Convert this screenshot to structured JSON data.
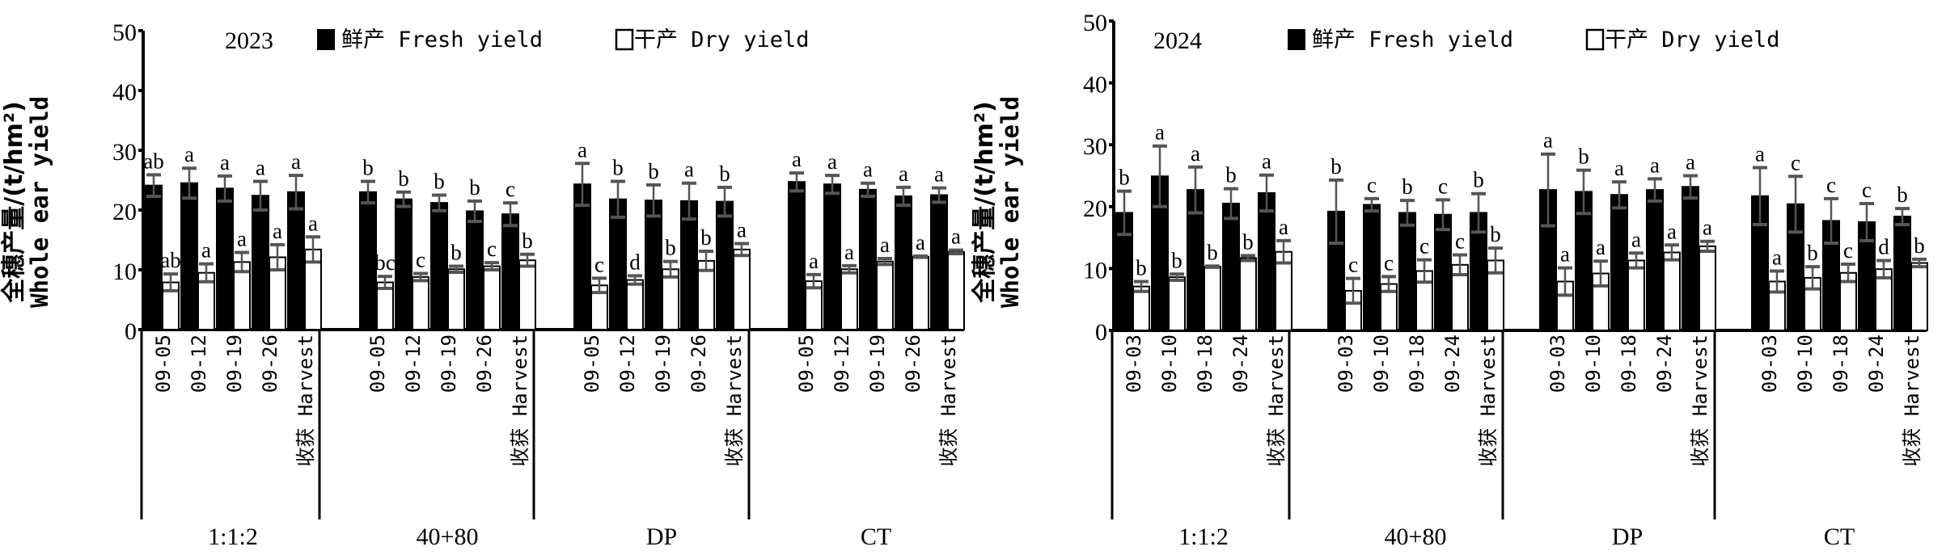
{
  "chart_data": [
    {
      "type": "bar",
      "title": "2023",
      "ylabel_cn": "全穗产量/(t/hm²)",
      "ylabel_en": "Whole ear yield",
      "ylim": [
        0,
        50
      ],
      "yticks": [
        "0",
        "10",
        "20",
        "30",
        "40",
        "50"
      ],
      "legend": {
        "fresh": "鲜产 Fresh yield",
        "dry": "干产 Dry yield",
        "placement": "top"
      },
      "groups": [
        "1:1:2",
        "40+80",
        "DP",
        "CT"
      ],
      "categories": [
        [
          "09-05",
          "09-12",
          "09-19",
          "09-26",
          "收获 Harvest"
        ],
        [
          "09-05",
          "09-12",
          "09-19",
          "09-26",
          "收获 Harvest"
        ],
        [
          "09-05",
          "09-12",
          "09-19",
          "09-26",
          "收获 Harvest"
        ],
        [
          "09-05",
          "09-12",
          "09-19",
          "09-26",
          "收获 Harvest"
        ]
      ],
      "series": [
        {
          "name": "鲜产 Fresh yield",
          "color": "#000000",
          "values": [
            [
              24.1,
              24.5,
              23.6,
              22.4,
              23.0
            ],
            [
              23.0,
              21.8,
              21.2,
              19.8,
              19.3
            ],
            [
              24.3,
              21.8,
              21.6,
              21.5,
              21.4
            ],
            [
              24.7,
              24.3,
              23.4,
              22.3,
              22.5
            ]
          ],
          "errors": [
            [
              1.8,
              2.5,
              2.1,
              2.4,
              2.8
            ],
            [
              1.8,
              1.2,
              1.3,
              1.7,
              1.9
            ],
            [
              3.5,
              3.0,
              2.6,
              3.0,
              2.4
            ],
            [
              1.5,
              1.5,
              1.1,
              1.5,
              1.2
            ]
          ],
          "letters": [
            [
              "ab",
              "a",
              "a",
              "a",
              "a"
            ],
            [
              "b",
              "b",
              "b",
              "b",
              "c"
            ],
            [
              "a",
              "b",
              "b",
              "a",
              "b"
            ],
            [
              "a",
              "a",
              "a",
              "a",
              "a"
            ]
          ]
        },
        {
          "name": "干产 Dry yield",
          "color": "#ffffff",
          "values": [
            [
              7.9,
              9.5,
              11.3,
              12.1,
              13.4
            ],
            [
              7.9,
              8.8,
              10.1,
              10.6,
              11.6
            ],
            [
              7.4,
              8.3,
              10.1,
              11.5,
              13.4
            ],
            [
              8.1,
              10.1,
              11.4,
              12.2,
              13.0
            ]
          ],
          "errors": [
            [
              1.4,
              1.5,
              1.6,
              2.1,
              2.1
            ],
            [
              1.0,
              0.6,
              0.5,
              0.6,
              1.0
            ],
            [
              1.2,
              0.7,
              1.3,
              1.6,
              1.0
            ],
            [
              1.1,
              0.6,
              0.5,
              0.1,
              0.3
            ]
          ],
          "letters": [
            [
              "ab",
              "a",
              "a",
              "a",
              "a"
            ],
            [
              "bc",
              "c",
              "b",
              "c",
              "b"
            ],
            [
              "c",
              "d",
              "b",
              "b",
              "a"
            ],
            [
              "a",
              "a",
              "a",
              "a",
              "a"
            ]
          ]
        }
      ]
    },
    {
      "type": "bar",
      "title": "2024",
      "ylabel_cn": "全穗产量/(t/hm²)",
      "ylabel_en": "Whole ear yield",
      "ylim": [
        0,
        50
      ],
      "yticks": [
        "0",
        "10",
        "20",
        "30",
        "40",
        "50"
      ],
      "legend": {
        "fresh": "鲜产 Fresh yield",
        "dry": "干产 Dry yield",
        "placement": "top"
      },
      "groups": [
        "1:1:2",
        "40+80",
        "DP",
        "CT"
      ],
      "categories": [
        [
          "09-03",
          "09-10",
          "09-18",
          "09-24",
          "收获 Harvest"
        ],
        [
          "09-03",
          "09-10",
          "09-18",
          "09-24",
          "收获 Harvest"
        ],
        [
          "09-03",
          "09-10",
          "09-18",
          "09-24",
          "收获 Harvest"
        ],
        [
          "09-03",
          "09-10",
          "09-18",
          "09-24",
          "收获 Harvest"
        ]
      ],
      "series": [
        {
          "name": "鲜产 Fresh yield",
          "color": "#000000",
          "values": [
            [
              19.0,
              24.9,
              22.7,
              20.5,
              22.2
            ],
            [
              19.2,
              20.3,
              19.0,
              18.7,
              19.0
            ],
            [
              22.7,
              22.4,
              21.9,
              22.7,
              23.2
            ],
            [
              21.7,
              20.4,
              17.7,
              17.5,
              18.4
            ]
          ],
          "errors": [
            [
              3.5,
              4.9,
              3.7,
              2.4,
              2.9
            ],
            [
              5.1,
              1.0,
              2.0,
              2.4,
              3.1
            ],
            [
              5.8,
              3.5,
              2.1,
              1.8,
              1.8
            ],
            [
              4.6,
              4.5,
              3.6,
              3.0,
              1.3
            ]
          ],
          "letters": [
            [
              "b",
              "a",
              "a",
              "b",
              "a"
            ],
            [
              "b",
              "c",
              "b",
              "c",
              "b"
            ],
            [
              "a",
              "b",
              "a",
              "a",
              "a"
            ],
            [
              "a",
              "c",
              "c",
              "c",
              "b"
            ]
          ]
        },
        {
          "name": "干产 Dry yield",
          "color": "#ffffff",
          "values": [
            [
              7.1,
              8.6,
              10.3,
              11.7,
              12.7
            ],
            [
              6.4,
              7.5,
              9.6,
              10.6,
              11.3
            ],
            [
              7.9,
              9.2,
              11.3,
              12.6,
              13.6
            ],
            [
              7.9,
              8.5,
              9.3,
              9.9,
              10.9
            ]
          ],
          "errors": [
            [
              0.8,
              0.5,
              0.1,
              0.4,
              1.8
            ],
            [
              2.0,
              1.2,
              1.8,
              1.6,
              2.0
            ],
            [
              2.2,
              2.0,
              1.2,
              1.2,
              0.8
            ],
            [
              1.7,
              1.8,
              1.4,
              1.4,
              0.6
            ]
          ],
          "letters": [
            [
              "b",
              "b",
              "b",
              "b",
              "a"
            ],
            [
              "c",
              "c",
              "c",
              "c",
              "b"
            ],
            [
              "a",
              "a",
              "a",
              "a",
              "a"
            ],
            [
              "a",
              "b",
              "c",
              "d",
              "b"
            ]
          ]
        }
      ]
    }
  ]
}
